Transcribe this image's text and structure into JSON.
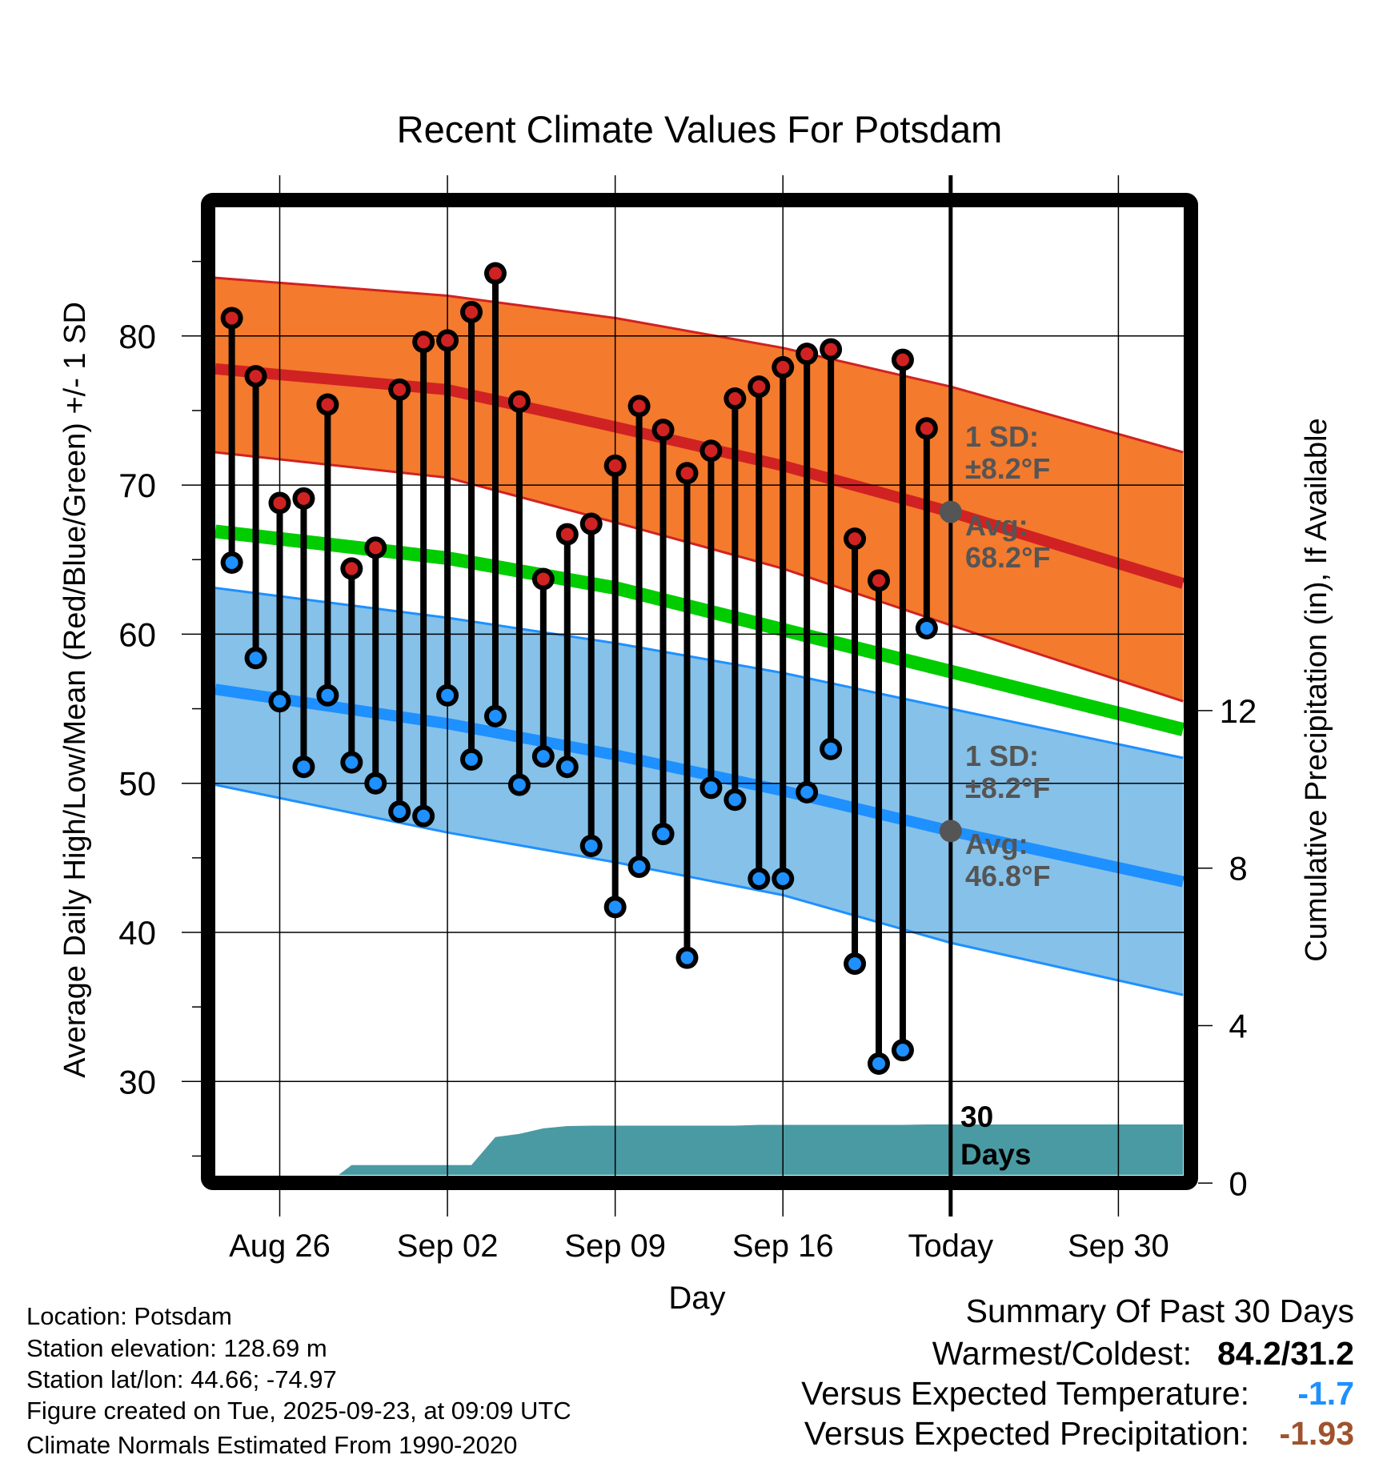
{
  "chart_data": {
    "type": "line",
    "title": "Recent Climate Values For Potsdam",
    "xlabel": "Day",
    "ylabel": "Average Daily High/Low/Mean (Red/Blue/Green) +/- 1 SD",
    "y2label": "Cumulative Precipitation (in), If Available",
    "xlim_days": [
      -0.69,
      39.7
    ],
    "ylim": [
      23.74,
      88.67
    ],
    "grid": true,
    "x_ticks": [
      {
        "day": 2,
        "label": "Aug 26"
      },
      {
        "day": 9,
        "label": "Sep 02"
      },
      {
        "day": 16,
        "label": "Sep 09"
      },
      {
        "day": 23,
        "label": "Sep 16"
      },
      {
        "day": 30,
        "label": "Today"
      },
      {
        "day": 37,
        "label": "Sep 30"
      }
    ],
    "y_ticks": [
      30,
      40,
      50,
      60,
      70,
      80
    ],
    "y_minor_ticks": [
      25,
      35,
      45,
      55,
      65,
      75,
      85
    ],
    "y2_ticks": [
      0,
      4,
      8,
      12
    ],
    "days": [
      0,
      1,
      2,
      3,
      4,
      5,
      6,
      7,
      8,
      9,
      10,
      11,
      12,
      13,
      14,
      15,
      16,
      17,
      18,
      19,
      20,
      21,
      22,
      23,
      24,
      25,
      26,
      27,
      28,
      29
    ],
    "highs": [
      81.2,
      77.3,
      68.8,
      69.1,
      75.4,
      64.4,
      65.8,
      76.4,
      79.6,
      79.7,
      81.6,
      84.2,
      75.6,
      63.7,
      66.7,
      67.4,
      71.3,
      75.3,
      73.7,
      70.8,
      72.3,
      75.8,
      76.6,
      77.9,
      78.8,
      79.1,
      66.4,
      63.6,
      78.4,
      73.8
    ],
    "lows": [
      64.8,
      58.4,
      55.5,
      51.1,
      55.9,
      51.4,
      50.0,
      48.1,
      47.8,
      55.9,
      51.6,
      54.5,
      49.9,
      51.8,
      51.1,
      45.8,
      41.7,
      44.4,
      46.6,
      38.3,
      49.7,
      48.9,
      43.6,
      43.6,
      49.4,
      52.3,
      37.9,
      31.2,
      32.1,
      60.4
    ],
    "precip": [
      0,
      0,
      0,
      0,
      0,
      0.46,
      0.46,
      0.46,
      0.46,
      0.46,
      0.46,
      1.17,
      1.25,
      1.39,
      1.45,
      1.46,
      1.46,
      1.46,
      1.46,
      1.46,
      1.46,
      1.46,
      1.48,
      1.48,
      1.48,
      1.48,
      1.48,
      1.48,
      1.48,
      1.49
    ],
    "normals": {
      "days": [
        -0.69,
        9,
        16,
        23,
        30,
        39.7
      ],
      "high_upper": [
        83.9,
        82.7,
        81.2,
        79.2,
        76.6,
        72.2
      ],
      "high_avg": [
        77.8,
        76.4,
        73.9,
        71.3,
        68.2,
        63.4
      ],
      "high_lower": [
        72.2,
        70.5,
        67.5,
        64.4,
        60.6,
        55.5
      ],
      "mean": [
        66.9,
        65.1,
        63.1,
        60.3,
        57.5,
        53.6
      ],
      "low_upper": [
        63.1,
        61.1,
        59.4,
        57.4,
        55.0,
        51.7
      ],
      "low_avg": [
        56.3,
        54.0,
        51.9,
        49.5,
        46.8,
        43.4
      ],
      "low_lower": [
        49.9,
        46.7,
        44.7,
        42.5,
        39.3,
        35.8
      ]
    },
    "today_day": 30,
    "today_high_avg": 68.2,
    "today_low_avg": 46.8,
    "annotations": {
      "high_sd_label": "1 SD:",
      "high_sd_value": "±8.2°F",
      "high_avg_label": "Avg:",
      "high_avg_value": "68.2°F",
      "low_sd_label": "1 SD:",
      "low_sd_value": "±8.2°F",
      "low_avg_label": "Avg:",
      "low_avg_value": "46.8°F",
      "window_line1": "30",
      "window_line2": "Days"
    },
    "colors": {
      "high_band": "#F47A2D",
      "high_line": "#D02222",
      "mean_line": "#00CC00",
      "low_band": "#85C1E9",
      "low_line": "#1E90FF",
      "precip": "#4A9AA3",
      "annotation": "#555555"
    }
  },
  "footer": {
    "location": "Location: Potsdam",
    "elevation": "Station elevation: 128.69 m",
    "latlon": "Station lat/lon: 44.66; -74.97",
    "created": "Figure created on Tue, 2025-09-23, at 09:09 UTC",
    "normals": "Climate Normals Estimated From 1990-2020"
  },
  "summary": {
    "title": "Summary Of Past 30 Days",
    "warmest_label": "Warmest/Coldest:",
    "warmest_value": "84.2/31.2",
    "temp_label": "Versus Expected Temperature:",
    "temp_value": "-1.7",
    "temp_color": "#1E90FF",
    "precip_label": "Versus Expected Precipitation:",
    "precip_value": "-1.93",
    "precip_color": "#A0522D"
  }
}
